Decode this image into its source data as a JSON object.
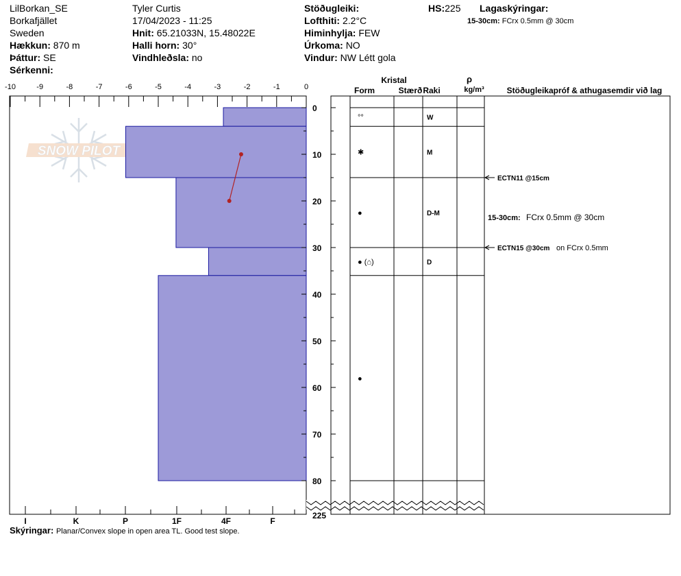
{
  "header": {
    "site": "LilBorkan_SE",
    "location": "Borkafjället",
    "country": "Sweden",
    "elevation_label": "Hækkun:",
    "elevation_value": "870 m",
    "aspect_label": "Þáttur:",
    "aspect_value": "SE",
    "specifics_label": "Sérkenni:",
    "observer": "Tyler Curtis",
    "datetime": "17/04/2023 - 11:25",
    "coords_label": "Hnit:",
    "coords_value": "65.21033N, 15.48022E",
    "slope_label": "Halli horn:",
    "slope_value": "30°",
    "wind_loading_label": "Vindhleðsla:",
    "wind_loading_value": "no",
    "stability_label": "Stöðugleiki:",
    "air_temp_label": "Lofthiti:",
    "air_temp_value": "2.2°C",
    "sky_label": "Himinhylja:",
    "sky_value": "FEW",
    "precip_label": "Úrkoma:",
    "precip_value": "NO",
    "wind_label": "Vindur:",
    "wind_value": "NW Létt gola",
    "hs_label": "HS:",
    "hs_value": "225",
    "layer_notes_label": "Lagaskýringar:",
    "layer_notes_range": "15-30cm:",
    "layer_notes_value": "FCrx 0.5mm @ 30cm"
  },
  "columns": {
    "crystal": "Kristal",
    "form": "Form",
    "size": "Stærð",
    "wetness": "Raki",
    "density_symbol": "ρ",
    "density_unit": "kg/m³",
    "tests": "Stöðugleikapróf & athugasemdir við lag"
  },
  "footer": {
    "notes_label": "Skýringar:",
    "notes_value": "Planar/Convex slope in open area TL. Good test slope."
  },
  "logo": {
    "text": "SNOW PILOT"
  },
  "colors": {
    "hardness_fill": "#9d9ad8",
    "hardness_stroke": "#1a1aa0",
    "temp_line": "#b22222"
  },
  "chart_data": {
    "type": "snow_profile",
    "temperature_axis": {
      "ticks": [
        "-10",
        "-9",
        "-8",
        "-7",
        "-6",
        "-5",
        "-4",
        "-3",
        "-2",
        "-1",
        "0"
      ],
      "range": [
        -10,
        0
      ]
    },
    "hardness_axis": {
      "labels": [
        "I",
        "K",
        "P",
        "1F",
        "4F",
        "F"
      ]
    },
    "depth_axis": {
      "ticks": [
        "0",
        "10",
        "20",
        "30",
        "40",
        "50",
        "60",
        "70",
        "80"
      ],
      "break_label": "225",
      "range": [
        0,
        82
      ]
    },
    "hardness_layers": [
      {
        "top": 0,
        "bottom": 4,
        "hardness": -2.8
      },
      {
        "top": 4,
        "bottom": 15,
        "hardness": -6.1
      },
      {
        "top": 15,
        "bottom": 30,
        "hardness": -4.4
      },
      {
        "top": 30,
        "bottom": 36,
        "hardness": -3.3
      },
      {
        "top": 36,
        "bottom": 80,
        "hardness": -5.0
      }
    ],
    "temperature_profile": [
      {
        "depth": 10,
        "temp": -2.2
      },
      {
        "depth": 20,
        "temp": -2.6
      }
    ],
    "stratigraphy_lines": [
      0,
      4,
      15,
      30,
      36,
      80
    ],
    "crystal_forms": [
      {
        "depth": 2,
        "symbol": "°°"
      },
      {
        "depth": 9.5,
        "symbol": "✱"
      },
      {
        "depth": 22.5,
        "symbol": "●"
      },
      {
        "depth": 33,
        "symbol": "● (⌂)"
      },
      {
        "depth": 58,
        "symbol": "●"
      }
    ],
    "wetness": [
      {
        "depth": 2,
        "label": "W"
      },
      {
        "depth": 9.5,
        "label": "M"
      },
      {
        "depth": 22.5,
        "label": "D-M"
      },
      {
        "depth": 33,
        "label": "D"
      }
    ],
    "tests": [
      {
        "depth": 15,
        "label": "ECTN11 @15cm",
        "extra": ""
      },
      {
        "depth": 30,
        "label": "ECTN15 @30cm",
        "extra": "on FCrx 0.5mm"
      }
    ],
    "layer_comments": [
      {
        "depth": 23.5,
        "range": "15-30cm:",
        "text": "FCrx 0.5mm @ 30cm"
      }
    ]
  }
}
